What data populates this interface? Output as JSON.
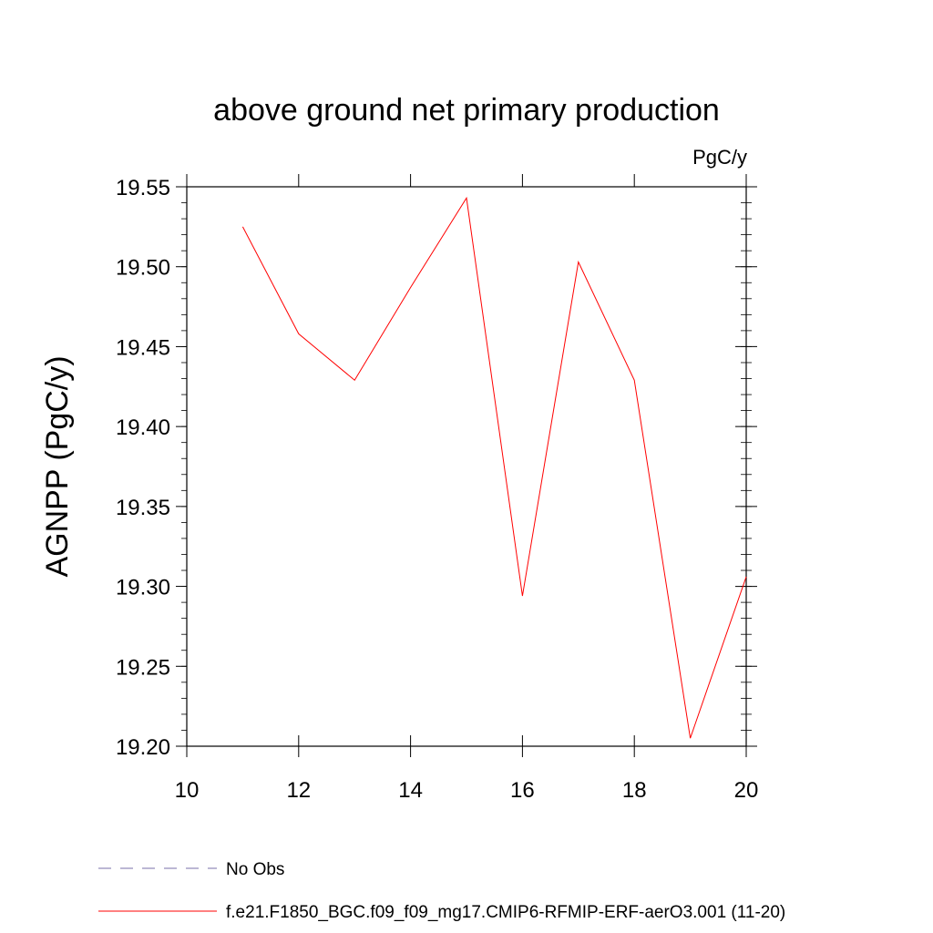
{
  "chart_data": {
    "type": "line",
    "title": "above ground net primary production",
    "units_label": "PgC/y",
    "ylabel": "AGNPP  (PgC/y)",
    "xlabel": "",
    "xlim": [
      10,
      20
    ],
    "ylim": [
      19.2,
      19.55
    ],
    "x_ticks": [
      10,
      12,
      14,
      16,
      18,
      20
    ],
    "x_tick_labels": [
      "10",
      "12",
      "14",
      "16",
      "18",
      "20"
    ],
    "y_ticks": [
      19.2,
      19.25,
      19.3,
      19.35,
      19.4,
      19.45,
      19.5,
      19.55
    ],
    "y_tick_labels": [
      "19.20",
      "19.25",
      "19.30",
      "19.35",
      "19.40",
      "19.45",
      "19.50",
      "19.55"
    ],
    "grid": false,
    "legend_position": "bottom-left",
    "series": [
      {
        "name": "f.e21.F1850_BGC.f09_f09_mg17.CMIP6-RFMIP-ERF-aerO3.001 (11-20)",
        "color": "#ff0000",
        "style": "solid",
        "x": [
          11,
          12,
          13,
          14,
          15,
          16,
          17,
          18,
          19,
          20
        ],
        "y": [
          19.525,
          19.458,
          19.429,
          19.487,
          19.543,
          19.294,
          19.503,
          19.429,
          19.205,
          19.306
        ]
      }
    ],
    "legend": [
      {
        "label": "No Obs",
        "color": "#7a6fa8",
        "style": "dashed"
      },
      {
        "label": "f.e21.F1850_BGC.f09_f09_mg17.CMIP6-RFMIP-ERF-aerO3.001 (11-20)",
        "color": "#ff0000",
        "style": "solid"
      }
    ]
  }
}
